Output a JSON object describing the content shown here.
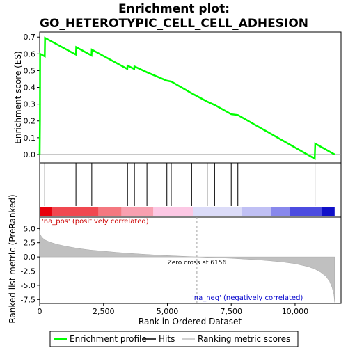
{
  "chart_data": {
    "type": "line",
    "title_line1": "Enrichment plot:",
    "title_line2": "GO_HETEROTYPIC_CELL_CELL_ADHESION",
    "xlabel": "Rank in Ordered Dataset",
    "xlim": [
      0,
      11800
    ],
    "x_ticks": [
      "0",
      "2,500",
      "5,000",
      "7,500",
      "10,000"
    ],
    "x_tick_values": [
      0,
      2500,
      5000,
      7500,
      10000
    ],
    "es_panel": {
      "ylabel": "Enrichment score (ES)",
      "ylim": [
        -0.05,
        0.73
      ],
      "y_ticks": [
        "0.0",
        "0.1",
        "0.2",
        "0.3",
        "0.4",
        "0.5",
        "0.6",
        "0.7"
      ],
      "y_tick_values": [
        0.0,
        0.1,
        0.2,
        0.3,
        0.4,
        0.5,
        0.6,
        0.7
      ],
      "color": "#00ff00",
      "points": [
        [
          0,
          0.0
        ],
        [
          10,
          0.21
        ],
        [
          15,
          0.6
        ],
        [
          200,
          0.585
        ],
        [
          210,
          0.695
        ],
        [
          1420,
          0.595
        ],
        [
          1430,
          0.64
        ],
        [
          2030,
          0.59
        ],
        [
          2040,
          0.625
        ],
        [
          3430,
          0.51
        ],
        [
          3440,
          0.53
        ],
        [
          3700,
          0.51
        ],
        [
          3710,
          0.525
        ],
        [
          4200,
          0.49
        ],
        [
          4980,
          0.44
        ],
        [
          5150,
          0.435
        ],
        [
          5950,
          0.365
        ],
        [
          6560,
          0.315
        ],
        [
          6850,
          0.295
        ],
        [
          7500,
          0.24
        ],
        [
          7760,
          0.235
        ],
        [
          10770,
          -0.025
        ],
        [
          10790,
          0.065
        ],
        [
          11550,
          0.0
        ]
      ]
    },
    "hits": [
      12,
      200,
      1420,
      2040,
      3440,
      3710,
      4200,
      4980,
      5150,
      5950,
      6560,
      6850,
      7500,
      7760,
      10780
    ],
    "heat_bar": {
      "segments": [
        {
          "x0": 0,
          "x1": 500,
          "color": "#e8000b"
        },
        {
          "x0": 500,
          "x1": 2300,
          "color": "#f04850"
        },
        {
          "x0": 2300,
          "x1": 3200,
          "color": "#f47880"
        },
        {
          "x0": 3200,
          "x1": 4450,
          "color": "#f8a0b0"
        },
        {
          "x0": 4450,
          "x1": 6000,
          "color": "#fcc8e4"
        },
        {
          "x0": 6000,
          "x1": 7900,
          "color": "#dcdcf8"
        },
        {
          "x0": 7900,
          "x1": 9050,
          "color": "#c0c0f4"
        },
        {
          "x0": 9050,
          "x1": 9800,
          "color": "#8888ec"
        },
        {
          "x0": 9800,
          "x1": 11050,
          "color": "#4c4ce0"
        },
        {
          "x0": 11050,
          "x1": 11550,
          "color": "#1010c8"
        }
      ]
    },
    "metric_panel": {
      "ylabel": "Ranked list metric (PreRanked)",
      "ylim": [
        -8.2,
        7.0
      ],
      "y_ticks": [
        "5.0",
        "2.5",
        "0.0",
        "-2.5",
        "-5.0",
        "-7.5"
      ],
      "y_tick_values": [
        5.0,
        2.5,
        0.0,
        -2.5,
        -5.0,
        -7.5
      ],
      "fill_color": "#c0c0c0",
      "curve": [
        [
          0,
          4.6
        ],
        [
          20,
          4.0
        ],
        [
          80,
          3.5
        ],
        [
          200,
          3.0
        ],
        [
          400,
          2.6
        ],
        [
          700,
          2.2
        ],
        [
          1000,
          1.9
        ],
        [
          1500,
          1.5
        ],
        [
          2000,
          1.2
        ],
        [
          2500,
          1.0
        ],
        [
          3000,
          0.8
        ],
        [
          3500,
          0.62
        ],
        [
          4000,
          0.48
        ],
        [
          4500,
          0.35
        ],
        [
          5000,
          0.22
        ],
        [
          5500,
          0.12
        ],
        [
          6156,
          0.0
        ],
        [
          6800,
          -0.12
        ],
        [
          7500,
          -0.25
        ],
        [
          8000,
          -0.38
        ],
        [
          8500,
          -0.5
        ],
        [
          9000,
          -0.68
        ],
        [
          9500,
          -0.9
        ],
        [
          10000,
          -1.2
        ],
        [
          10500,
          -1.7
        ],
        [
          10800,
          -2.2
        ],
        [
          11000,
          -2.7
        ],
        [
          11200,
          -3.4
        ],
        [
          11350,
          -4.3
        ],
        [
          11450,
          -5.4
        ],
        [
          11520,
          -6.6
        ],
        [
          11550,
          -8.0
        ]
      ],
      "zero_cross_x": 6156,
      "zero_cross_label": "Zero cross at 6156",
      "pos_label": "'na_pos' (positively correlated)",
      "pos_color": "#cc0000",
      "neg_label": "'na_neg' (negatively correlated)",
      "neg_color": "#0000cc"
    },
    "legend": [
      {
        "label": "Enrichment profile",
        "kind": "line",
        "color": "#00ff00"
      },
      {
        "label": "Hits",
        "kind": "line",
        "color": "#000000"
      },
      {
        "label": "Ranking metric scores",
        "kind": "line",
        "color": "#c0c0c0"
      }
    ]
  }
}
